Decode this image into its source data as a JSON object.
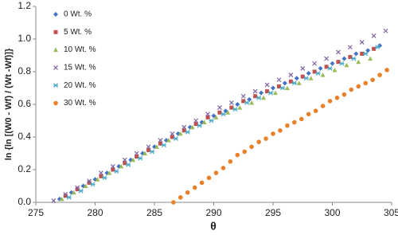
{
  "chart_data": {
    "type": "scatter",
    "x_label": "θ",
    "y_label": "ln {ln [(W0 - Wf) / (Wt -Wf)]}",
    "xlim": [
      275,
      305
    ],
    "xticks": [
      275,
      280,
      285,
      290,
      295,
      300,
      305
    ],
    "ylim": [
      0,
      1.2
    ],
    "yticks": [
      {
        "value": 0,
        "label": "0.0"
      },
      0.2,
      0.4,
      0.6,
      0.8,
      {
        "value": 1,
        "label": "1.0"
      },
      1.2
    ],
    "grid": false,
    "legend": "upper left",
    "series": [
      {
        "name": "0 Wt. %",
        "color": "#4472c4",
        "marker": "diamond",
        "x": [
          277,
          278,
          279,
          280,
          281,
          282,
          283,
          284,
          285,
          286,
          287,
          288,
          289,
          290,
          291,
          292,
          293,
          294,
          295,
          296,
          297,
          298,
          299,
          300,
          301,
          302,
          303,
          304
        ],
        "values": [
          0.02,
          0.06,
          0.1,
          0.14,
          0.18,
          0.22,
          0.26,
          0.3,
          0.34,
          0.38,
          0.42,
          0.46,
          0.49,
          0.53,
          0.56,
          0.6,
          0.63,
          0.67,
          0.7,
          0.73,
          0.76,
          0.79,
          0.82,
          0.85,
          0.88,
          0.91,
          0.93,
          0.96
        ]
      },
      {
        "name": "5 Wt. %",
        "color": "#c0504d",
        "marker": "square",
        "x": [
          277.5,
          278.5,
          279.5,
          280.5,
          281.5,
          282.5,
          283.5,
          284.5,
          285.5,
          286.5,
          287.5,
          288.5,
          289.5,
          290.5,
          291.5,
          292.5,
          293.5,
          294.5,
          295.5,
          296.5,
          297.5,
          298.5,
          299.5,
          300.5,
          301.5,
          302.5,
          303.5
        ],
        "values": [
          0.04,
          0.08,
          0.12,
          0.16,
          0.2,
          0.24,
          0.28,
          0.32,
          0.36,
          0.4,
          0.44,
          0.48,
          0.52,
          0.55,
          0.58,
          0.62,
          0.65,
          0.68,
          0.71,
          0.74,
          0.77,
          0.8,
          0.83,
          0.86,
          0.89,
          0.91,
          0.94
        ]
      },
      {
        "name": "10 Wt. %",
        "color": "#9bbb59",
        "marker": "triangle",
        "x": [
          277.2,
          278.2,
          279.2,
          280.2,
          281.2,
          282.2,
          283.2,
          284.2,
          285.2,
          286.2,
          287.2,
          288.2,
          289.2,
          290.2,
          291.2,
          292.2,
          293.2,
          294.2,
          295.2,
          296.2,
          297.2,
          298.2,
          299.2,
          300.2,
          301.2,
          302.2,
          303.2
        ],
        "values": [
          0.02,
          0.06,
          0.1,
          0.14,
          0.18,
          0.22,
          0.26,
          0.3,
          0.34,
          0.38,
          0.42,
          0.46,
          0.49,
          0.52,
          0.55,
          0.58,
          0.61,
          0.64,
          0.67,
          0.7,
          0.73,
          0.76,
          0.78,
          0.81,
          0.84,
          0.86,
          0.88
        ]
      },
      {
        "name": "15 Wt. %",
        "color": "#7f62a0",
        "marker": "x",
        "x": [
          276.5,
          277.5,
          278.5,
          279.5,
          280.5,
          281.5,
          282.5,
          283.5,
          284.5,
          285.5,
          286.5,
          287.5,
          288.5,
          289.5,
          290.5,
          291.5,
          292.5,
          293.5,
          294.5,
          295.5,
          296.5,
          297.5,
          298.5,
          299.5,
          300.5,
          301.5,
          302.5,
          303.5,
          304.5
        ],
        "values": [
          0.01,
          0.05,
          0.09,
          0.13,
          0.18,
          0.22,
          0.26,
          0.3,
          0.34,
          0.38,
          0.42,
          0.46,
          0.5,
          0.54,
          0.58,
          0.61,
          0.65,
          0.68,
          0.72,
          0.75,
          0.78,
          0.82,
          0.85,
          0.88,
          0.92,
          0.95,
          0.98,
          1.02,
          1.05
        ]
      },
      {
        "name": "20 Wt. %",
        "color": "#4bacc6",
        "marker": "star",
        "x": [
          277.8,
          278.8,
          279.8,
          280.8,
          281.8,
          282.8,
          283.8,
          284.8,
          285.8,
          286.8,
          287.8,
          288.8,
          289.8,
          290.8,
          291.8,
          292.8,
          293.8,
          294.8,
          295.8,
          296.8,
          297.8,
          298.8,
          299.8,
          300.8,
          301.8,
          302.8,
          303.8
        ],
        "values": [
          0.03,
          0.07,
          0.11,
          0.15,
          0.19,
          0.23,
          0.27,
          0.31,
          0.35,
          0.39,
          0.43,
          0.47,
          0.5,
          0.54,
          0.57,
          0.61,
          0.64,
          0.67,
          0.7,
          0.73,
          0.76,
          0.79,
          0.82,
          0.85,
          0.88,
          0.91,
          0.95
        ]
      },
      {
        "name": "30 Wt. %",
        "color": "#e8812a",
        "marker": "circle",
        "x": [
          286.6,
          287.2,
          287.8,
          288.4,
          289,
          289.6,
          290.2,
          290.8,
          291.4,
          292,
          292.6,
          293.2,
          293.8,
          294.4,
          295,
          295.6,
          296.2,
          296.8,
          297.4,
          298,
          298.6,
          299.2,
          299.8,
          300.4,
          301,
          301.6,
          302.2,
          302.8,
          303.4,
          304,
          304.6
        ],
        "values": [
          0.0,
          0.03,
          0.06,
          0.09,
          0.12,
          0.15,
          0.18,
          0.21,
          0.25,
          0.29,
          0.31,
          0.34,
          0.37,
          0.39,
          0.42,
          0.44,
          0.47,
          0.49,
          0.51,
          0.54,
          0.56,
          0.59,
          0.62,
          0.64,
          0.66,
          0.69,
          0.71,
          0.73,
          0.75,
          0.78,
          0.81
        ]
      }
    ]
  }
}
